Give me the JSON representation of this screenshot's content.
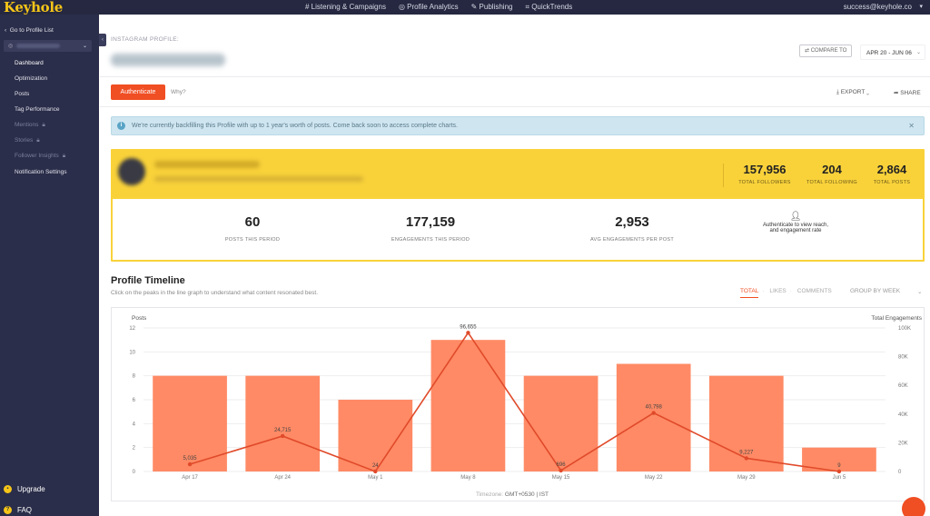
{
  "topbar": {
    "logo": "Keyhole",
    "nav": [
      "# Listening & Campaigns",
      "◎ Profile Analytics",
      "✎ Publishing",
      "⌗ QuickTrends"
    ],
    "email": "success@keyhole.co"
  },
  "sidebar": {
    "back_label": "Go to Profile List",
    "items": [
      {
        "label": "Dashboard",
        "active": true,
        "locked": false
      },
      {
        "label": "Optimization",
        "active": false,
        "locked": false
      },
      {
        "label": "Posts",
        "active": false,
        "locked": false
      },
      {
        "label": "Tag Performance",
        "active": false,
        "locked": false
      },
      {
        "label": "Mentions",
        "active": false,
        "locked": true
      },
      {
        "label": "Stories",
        "active": false,
        "locked": true
      },
      {
        "label": "Follower Insights",
        "active": false,
        "locked": true
      },
      {
        "label": "Notification Settings",
        "active": false,
        "locked": false
      }
    ],
    "upgrade_label": "Upgrade",
    "faq_label": "FAQ"
  },
  "header": {
    "profile_label": "INSTAGRAM PROFILE:",
    "compare_label": "⇄ COMPARE TO",
    "date_range": "APR 20 - JUN 06",
    "authenticate_label": "Authenticate",
    "why_label": "Why?",
    "export_label": "EXPORT",
    "share_label": "SHARE"
  },
  "banner": {
    "message": "We're currently backfilling this Profile with up to 1 year's worth of posts. Come back soon to access complete charts."
  },
  "stats": {
    "total_followers": {
      "value": "157,956",
      "label": "TOTAL FOLLOWERS"
    },
    "total_following": {
      "value": "204",
      "label": "TOTAL FOLLOWING"
    },
    "total_posts": {
      "value": "2,864",
      "label": "TOTAL POSTS"
    },
    "posts_this_period": {
      "value": "60",
      "label": "POSTS THIS PERIOD"
    },
    "engagements_this_period": {
      "value": "177,159",
      "label": "ENGAGEMENTS THIS PERIOD"
    },
    "avg_engagements": {
      "value": "2,953",
      "label": "AVG ENGAGEMENTS PER POST"
    },
    "auth_note": "Authenticate to view reach, and engagement rate"
  },
  "timeline": {
    "title": "Profile Timeline",
    "subtitle": "Click on the peaks in the line graph to understand what content resonated best.",
    "tabs": [
      "TOTAL",
      "LIKES",
      "COMMENTS"
    ],
    "active_tab": "TOTAL",
    "group_by": "GROUP BY WEEK",
    "timezone_label": "Timezone:",
    "timezone_value": "GMT+0530 | IST"
  },
  "chart_data": {
    "type": "bar",
    "categories": [
      "Apr 17",
      "Apr 24",
      "May 1",
      "May 8",
      "May 15",
      "May 22",
      "May 29",
      "Jun 5"
    ],
    "series": [
      {
        "name": "Posts",
        "type": "bar",
        "axis": "left",
        "color": "#ff8a65",
        "values": [
          8,
          8,
          6,
          11,
          8,
          9,
          8,
          2
        ]
      },
      {
        "name": "Total Engagements",
        "type": "line",
        "axis": "right",
        "color": "#e04a2a",
        "values": [
          5035,
          24715,
          24,
          96655,
          696,
          40798,
          9227,
          9
        ],
        "labels": [
          "5,035",
          "24,715",
          "24",
          "96,655",
          "696",
          "40,798",
          "9,227",
          "9"
        ]
      }
    ],
    "ylabel_left": "Posts",
    "ylabel_right": "Total Engagements",
    "ylim_left": [
      0,
      12
    ],
    "yticks_left": [
      "0",
      "2",
      "4",
      "6",
      "8",
      "10",
      "12"
    ],
    "ylim_right": [
      0,
      100000
    ],
    "yticks_right": [
      "0",
      "20K",
      "40K",
      "60K",
      "80K",
      "100K"
    ],
    "grid": true
  }
}
